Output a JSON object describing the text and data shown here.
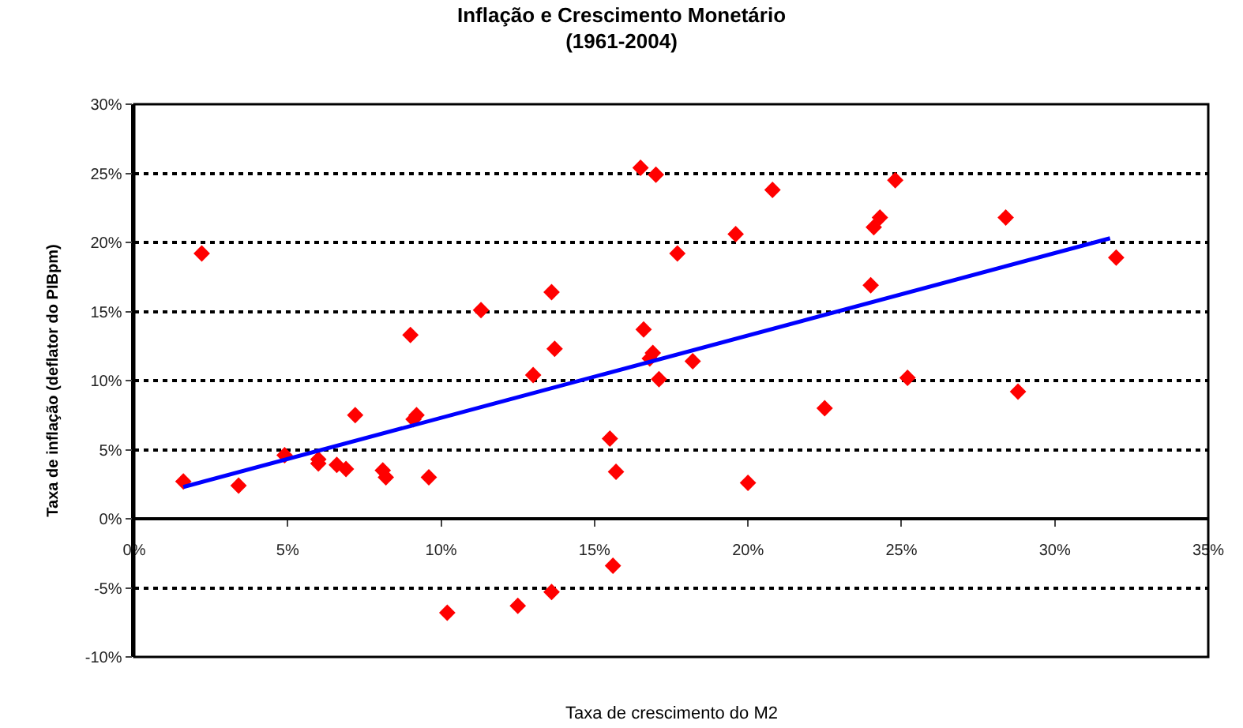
{
  "chart_data": {
    "type": "scatter",
    "title": "Inflação e Crescimento Monetário",
    "subtitle": "(1961-2004)",
    "xlabel": "Taxa de crescimento do M2",
    "ylabel": "Taxa de inflação (deflator do PIBpm)",
    "xlim": [
      0,
      35
    ],
    "ylim": [
      -10,
      30
    ],
    "xticks": [
      {
        "value": 0,
        "label": "0%"
      },
      {
        "value": 5,
        "label": "5%"
      },
      {
        "value": 10,
        "label": "10%"
      },
      {
        "value": 15,
        "label": "15%"
      },
      {
        "value": 20,
        "label": "20%"
      },
      {
        "value": 25,
        "label": "25%"
      },
      {
        "value": 30,
        "label": "30%"
      },
      {
        "value": 35,
        "label": "35%"
      }
    ],
    "yticks": [
      {
        "value": -10,
        "label": "-10%"
      },
      {
        "value": -5,
        "label": "-5%"
      },
      {
        "value": 0,
        "label": "0%"
      },
      {
        "value": 5,
        "label": "5%"
      },
      {
        "value": 10,
        "label": "10%"
      },
      {
        "value": 15,
        "label": "15%"
      },
      {
        "value": 20,
        "label": "20%"
      },
      {
        "value": 25,
        "label": "25%"
      },
      {
        "value": 30,
        "label": "30%"
      }
    ],
    "grid": "y",
    "legend": false,
    "series": [
      {
        "marker": "diamond",
        "color": "#ff0000",
        "x": [
          1.6,
          2.2,
          3.4,
          4.9,
          6.0,
          6.0,
          6.6,
          6.9,
          7.2,
          8.1,
          8.2,
          9.0,
          9.1,
          9.2,
          9.6,
          10.2,
          11.3,
          12.5,
          13.0,
          13.6,
          13.7,
          13.6,
          15.5,
          15.6,
          15.7,
          16.5,
          16.6,
          16.8,
          16.9,
          17.0,
          17.1,
          17.7,
          18.2,
          19.6,
          20.0,
          20.8,
          22.5,
          24.0,
          24.1,
          24.3,
          24.8,
          25.2,
          28.4,
          28.8,
          32.0
        ],
        "values": [
          2.7,
          19.2,
          2.4,
          4.6,
          4.0,
          4.3,
          3.9,
          3.6,
          7.5,
          3.5,
          3.0,
          13.3,
          7.2,
          7.5,
          3.0,
          -6.8,
          15.1,
          -6.3,
          10.4,
          16.4,
          12.3,
          -5.3,
          5.8,
          -3.4,
          3.4,
          25.4,
          13.7,
          11.6,
          12.0,
          24.9,
          10.1,
          19.2,
          11.4,
          20.6,
          2.6,
          23.8,
          8.0,
          16.9,
          21.1,
          21.8,
          24.5,
          10.2,
          21.8,
          9.2,
          18.9
        ]
      },
      {
        "type": "line",
        "marker": "none",
        "color": "#0000ff",
        "x": [
          1.6,
          31.8
        ],
        "values": [
          2.3,
          20.3
        ]
      }
    ]
  }
}
